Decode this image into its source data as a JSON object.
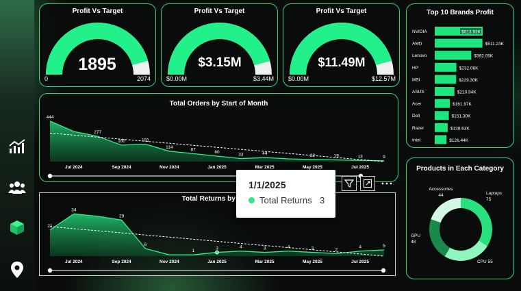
{
  "gauges": [
    {
      "title": "Profit Vs Target",
      "value_label": "1895",
      "min_label": "0",
      "max_label": "2074",
      "fraction": 0.914
    },
    {
      "title": "Profit Vs Target",
      "value_label": "$3.15M",
      "min_label": "$0.00M",
      "max_label": "$3.44M",
      "fraction": 0.916
    },
    {
      "title": "Profit Vs Target",
      "value_label": "$11.49M",
      "min_label": "$0.00M",
      "max_label": "$12.57M",
      "fraction": 0.914
    }
  ],
  "brands": {
    "title": "Top 10 Brands Profit",
    "items": [
      {
        "name": "NVIDIA",
        "label": "$513.93K",
        "value": 513.93
      },
      {
        "name": "AMD",
        "label": "$511.23K",
        "value": 511.23
      },
      {
        "name": "Lenovo",
        "label": "$392.05K",
        "value": 392.05
      },
      {
        "name": "HP",
        "label": "$232.06K",
        "value": 232.06
      },
      {
        "name": "MSI",
        "label": "$229.30K",
        "value": 229.3
      },
      {
        "name": "ASUS",
        "label": "$210.94K",
        "value": 210.94
      },
      {
        "name": "Acer",
        "label": "$161.97K",
        "value": 161.97
      },
      {
        "name": "Dell",
        "label": "$151.30K",
        "value": 151.3
      },
      {
        "name": "Razer",
        "label": "$138.63K",
        "value": 138.63
      },
      {
        "name": "Intel",
        "label": "$126.44K",
        "value": 126.44
      }
    ]
  },
  "categories": {
    "title": "Products in Each Category",
    "items": [
      {
        "name": "Laptops",
        "count": "75",
        "value": 75,
        "color": "#29e07f"
      },
      {
        "name": "CPU",
        "count": "55",
        "value": 55,
        "color": "#8ff5bf"
      },
      {
        "name": "GPU",
        "count": "48",
        "value": 48,
        "color": "#1a8a4c"
      },
      {
        "name": "Accessories",
        "count": "44",
        "value": 44,
        "color": "#d2f7e2"
      }
    ]
  },
  "chart_data": [
    {
      "type": "area",
      "title": "Total Orders by Start of Month",
      "x_ticks": [
        "Jul 2024",
        "Sep 2024",
        "Nov 2024",
        "Jan 2025",
        "Mar 2025",
        "May 2025",
        "Jul 2025"
      ],
      "x": [
        "Jun 2024",
        "Jul 2024",
        "Aug 2024",
        "Sep 2024",
        "Oct 2024",
        "Nov 2024",
        "Dec 2024",
        "Jan 2025",
        "Feb 2025",
        "Mar 2025",
        "Apr 2025",
        "May 2025",
        "Jun 2025",
        "Jul 2025",
        "Aug 2025"
      ],
      "values": [
        444,
        330,
        277,
        180,
        191,
        114,
        87,
        60,
        33,
        44,
        30,
        22,
        19,
        13,
        9
      ],
      "data_labels": [
        "444",
        "",
        "277",
        "180",
        "191",
        "114",
        "87",
        "60",
        "33",
        "44",
        "",
        "22",
        "19",
        "13",
        "9"
      ],
      "trendline": true,
      "ylim": [
        0,
        480
      ]
    },
    {
      "type": "area",
      "title": "Total Returns by Start",
      "x_ticks": [
        "Jul 2024",
        "Sep 2024",
        "Nov 2024",
        "Jan 2025",
        "Mar 2025",
        "May 2025",
        "Jul 2025"
      ],
      "x": [
        "Jun 2024",
        "Jul 2024",
        "Aug 2024",
        "Sep 2024",
        "Oct 2024",
        "Nov 2024",
        "Dec 2024",
        "Jan 2025",
        "Feb 2025",
        "Mar 2025",
        "Apr 2025",
        "May 2025",
        "Jun 2025",
        "Jul 2025",
        "Aug 2025"
      ],
      "values": [
        21,
        34,
        32,
        29,
        6,
        1,
        1,
        3,
        4,
        3,
        4,
        3,
        2,
        4,
        5
      ],
      "data_labels": [
        "21",
        "34",
        "",
        "29",
        "6",
        "",
        "1",
        "3",
        "4",
        "3",
        "4",
        "3",
        "2",
        "4",
        "5"
      ],
      "trendline": true,
      "ylim": [
        0,
        38
      ]
    }
  ],
  "tooltip": {
    "date": "1/1/2025",
    "label": "Total Returns",
    "value": "3"
  },
  "colors": {
    "accent": "#2fd67f",
    "bar": "#1ee67f",
    "background": "#0a0d0b"
  }
}
